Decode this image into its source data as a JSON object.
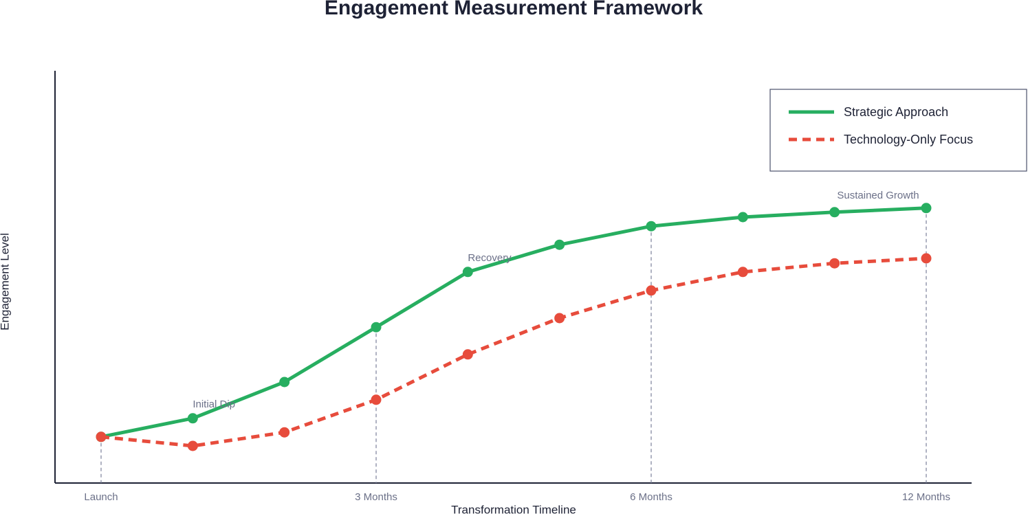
{
  "chart_data": {
    "type": "line",
    "title": "Engagement Measurement Framework",
    "x_label": "Transformation Timeline",
    "y_label": "Engagement Level",
    "categories": [
      "Launch",
      null,
      null,
      "3 Months",
      null,
      null,
      "6 Months",
      null,
      null,
      "12 Months"
    ],
    "ylim": [
      0,
      100
    ],
    "series": [
      {
        "name": "Strategic Approach",
        "color": "#27ae60",
        "style": "solid",
        "values": [
          11.2,
          15.7,
          24.5,
          37.8,
          51.2,
          57.8,
          62.3,
          64.5,
          65.7,
          66.7
        ]
      },
      {
        "name": "Technology-Only Focus",
        "color": "#e74c3c",
        "style": "dashed",
        "values": [
          11.2,
          9,
          12.3,
          20.2,
          31.2,
          40,
          46.7,
          51.2,
          53.3,
          54.5
        ]
      }
    ],
    "annotations": [
      "Initial Dip",
      "Recovery",
      "Sustained Growth"
    ],
    "legend": "upper right"
  }
}
